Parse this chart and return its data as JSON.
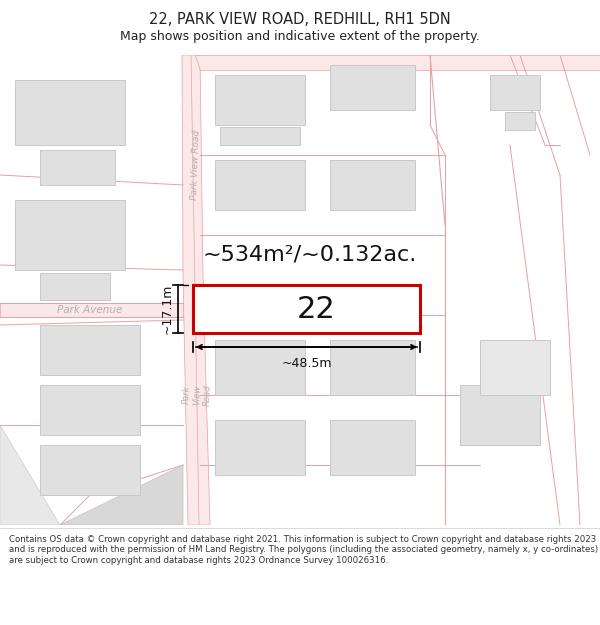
{
  "title": "22, PARK VIEW ROAD, REDHILL, RH1 5DN",
  "subtitle": "Map shows position and indicative extent of the property.",
  "footer": "Contains OS data © Crown copyright and database right 2021. This information is subject to Crown copyright and database rights 2023 and is reproduced with the permission of HM Land Registry. The polygons (including the associated geometry, namely x, y co-ordinates) are subject to Crown copyright and database rights 2023 Ordnance Survey 100026316.",
  "area_label": "~534m²/~0.132ac.",
  "number_label": "22",
  "width_label": "~48.5m",
  "height_label": "~17.1m",
  "bg_color": "#ffffff",
  "map_bg": "#ffffff",
  "road_color": "#fce8e8",
  "road_outline": "#e8a0a0",
  "building_fill": "#e0e0e0",
  "building_outline": "#c8c8c8",
  "plot_outline": "#cc0000",
  "plot_fill": "#ffffff",
  "street_label_color": "#b0b0b0",
  "title_fontsize": 10.5,
  "subtitle_fontsize": 9,
  "footer_fontsize": 6.2,
  "area_fontsize": 16,
  "number_fontsize": 22,
  "measure_fontsize": 9
}
